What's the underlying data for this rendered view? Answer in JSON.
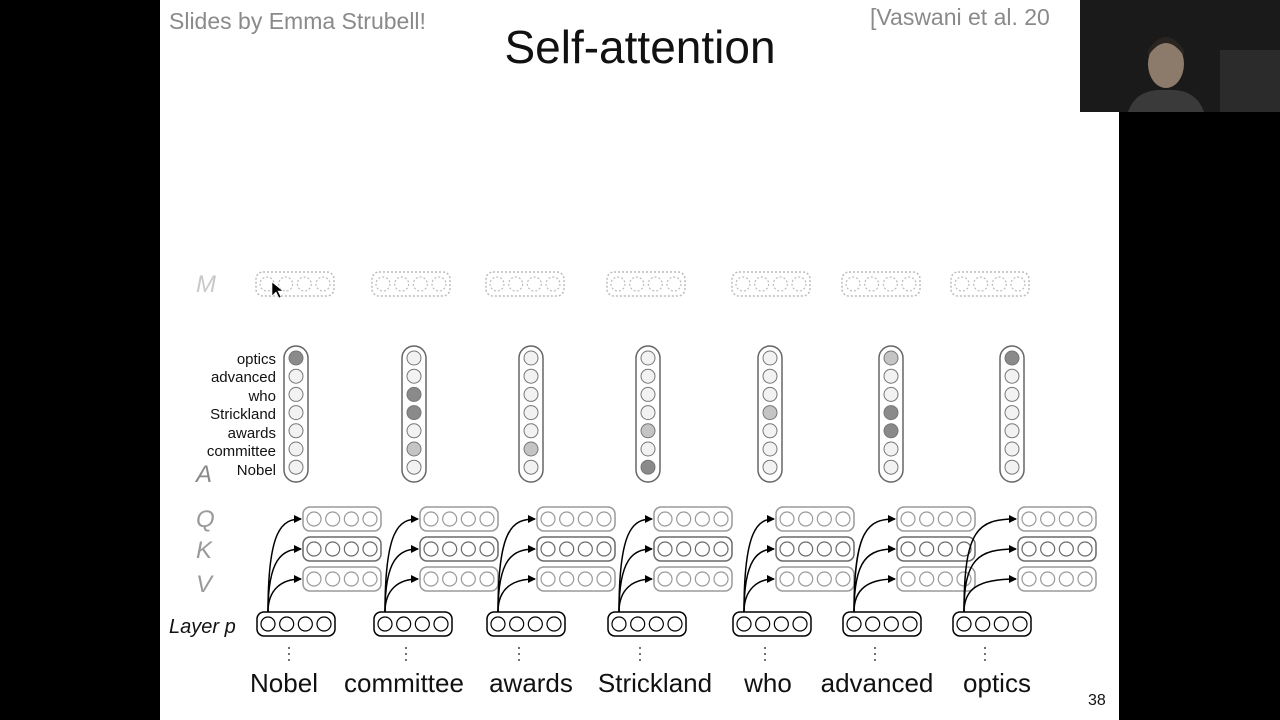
{
  "slide": {
    "credit": "Slides by Emma Strubell!",
    "citation": "[Vaswani et al. 20",
    "title": "Self-attention",
    "page_number": "38"
  },
  "diagram": {
    "row_labels": {
      "M": "M",
      "A": "A",
      "Q": "Q",
      "K": "K",
      "V": "V",
      "layer": "Layer p"
    },
    "words": [
      "Nobel",
      "committee",
      "awards",
      "Strickland",
      "who",
      "advanced",
      "optics"
    ],
    "attention_row_labels": [
      "optics",
      "advanced",
      "who",
      "Strickland",
      "awards",
      "committee",
      "Nobel"
    ],
    "attention_shading": [
      [
        "dark",
        "light",
        "light",
        "light",
        "light",
        "light",
        "light"
      ],
      [
        "light",
        "light",
        "dark",
        "dark",
        "light",
        "medium",
        "light"
      ],
      [
        "light",
        "light",
        "light",
        "light",
        "light",
        "medium",
        "light"
      ],
      [
        "light",
        "light",
        "light",
        "light",
        "medium",
        "light",
        "dark"
      ],
      [
        "light",
        "light",
        "light",
        "medium",
        "light",
        "light",
        "light"
      ],
      [
        "medium",
        "light",
        "light",
        "dark",
        "dark",
        "light",
        "light"
      ],
      [
        "dark",
        "light",
        "light",
        "light",
        "light",
        "light",
        "light"
      ]
    ],
    "colors": {
      "dark": "#8a8a8a",
      "medium": "#c4c4c4",
      "light": "#f2f2f2",
      "faded": "#bbbbbb",
      "qkv": "#6a6a6a"
    }
  },
  "webcam": {
    "label": "presenter-video"
  }
}
